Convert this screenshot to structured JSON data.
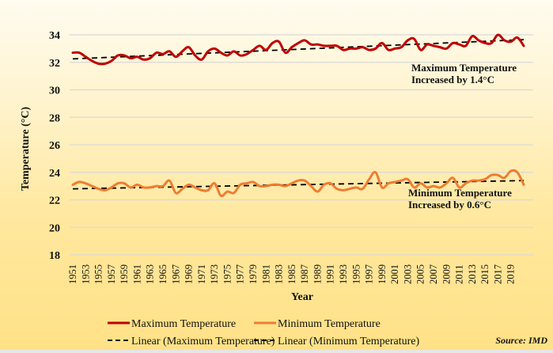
{
  "chart_data": {
    "type": "line",
    "title": "",
    "xlabel": "Year",
    "ylabel": "Temperature (°C)",
    "ylim": [
      18,
      34
    ],
    "y_ticks": [
      "18",
      "20",
      "22",
      "24",
      "26",
      "28",
      "30",
      "32",
      "34"
    ],
    "grid": true,
    "legend_position": "bottom",
    "x": [
      1951,
      1952,
      1953,
      1954,
      1955,
      1956,
      1957,
      1958,
      1959,
      1960,
      1961,
      1962,
      1963,
      1964,
      1965,
      1966,
      1967,
      1968,
      1969,
      1970,
      1971,
      1972,
      1973,
      1974,
      1975,
      1976,
      1977,
      1978,
      1979,
      1980,
      1981,
      1982,
      1983,
      1984,
      1985,
      1986,
      1987,
      1988,
      1989,
      1990,
      1991,
      1992,
      1993,
      1994,
      1995,
      1996,
      1997,
      1998,
      1999,
      2000,
      2001,
      2002,
      2003,
      2004,
      2005,
      2006,
      2007,
      2008,
      2009,
      2010,
      2011,
      2012,
      2013,
      2014,
      2015,
      2016,
      2017,
      2018,
      2019,
      2020,
      2021
    ],
    "x_tick_labels": [
      "1951",
      "1953",
      "1955",
      "1957",
      "1959",
      "1961",
      "1963",
      "1965",
      "1967",
      "1969",
      "1971",
      "1973",
      "1975",
      "1977",
      "1979",
      "1981",
      "1983",
      "1985",
      "1987",
      "1989",
      "1991",
      "1993",
      "1995",
      "1997",
      "1999",
      "2001",
      "2003",
      "2005",
      "2007",
      "2009",
      "2011",
      "2013",
      "2015",
      "2017",
      "2019"
    ],
    "series": [
      {
        "name": "Maximum Temperature",
        "color": "#c00000",
        "style": "solid",
        "values": [
          32.7,
          32.7,
          32.4,
          32.1,
          31.9,
          31.9,
          32.1,
          32.5,
          32.5,
          32.3,
          32.4,
          32.2,
          32.3,
          32.7,
          32.6,
          32.8,
          32.4,
          32.8,
          33.1,
          32.5,
          32.2,
          32.8,
          33.0,
          32.7,
          32.5,
          32.8,
          32.5,
          32.6,
          32.9,
          33.2,
          32.9,
          33.4,
          33.5,
          32.7,
          33.1,
          33.4,
          33.6,
          33.3,
          33.3,
          33.2,
          33.2,
          33.2,
          32.9,
          33.0,
          33.0,
          33.1,
          32.9,
          33.0,
          33.4,
          32.9,
          33.0,
          33.1,
          33.6,
          33.7,
          32.9,
          33.3,
          33.2,
          33.1,
          33.0,
          33.4,
          33.3,
          33.2,
          33.9,
          33.6,
          33.4,
          33.4,
          34.0,
          33.6,
          33.5,
          33.8,
          33.2
        ]
      },
      {
        "name": "Minimum Temperature",
        "color": "#ed7d31",
        "style": "solid",
        "values": [
          23.1,
          23.3,
          23.2,
          23.0,
          22.8,
          22.7,
          22.9,
          23.2,
          23.2,
          22.9,
          23.1,
          22.9,
          22.9,
          23.0,
          23.0,
          23.4,
          22.5,
          22.8,
          23.1,
          22.9,
          22.7,
          22.7,
          23.2,
          22.3,
          22.6,
          22.5,
          23.1,
          23.2,
          23.3,
          23.0,
          23.0,
          23.1,
          23.1,
          23.0,
          23.2,
          23.4,
          23.4,
          23.0,
          22.6,
          23.1,
          23.2,
          22.8,
          22.7,
          22.8,
          22.9,
          22.8,
          23.5,
          24.0,
          22.9,
          23.2,
          23.3,
          23.4,
          23.5,
          22.9,
          23.2,
          22.9,
          23.0,
          22.9,
          23.2,
          23.6,
          22.9,
          23.2,
          23.4,
          23.4,
          23.5,
          23.8,
          23.8,
          23.6,
          24.1,
          24.0,
          23.1
        ]
      },
      {
        "name": "Linear (Maximum Temperature)",
        "color": "#000000",
        "style": "dashed",
        "trend": [
          32.25,
          33.65
        ]
      },
      {
        "name": "Linear (Minimum Temperature)",
        "color": "#000000",
        "style": "dashed",
        "trend": [
          22.8,
          23.4
        ]
      }
    ],
    "annotations": [
      {
        "lines": [
          "Maximum Temperature",
          "Increased by 1.4°C"
        ]
      },
      {
        "lines": [
          "Minimum Temperature",
          "Increased by 0.6°C"
        ]
      }
    ],
    "source": "Source: IMD"
  }
}
